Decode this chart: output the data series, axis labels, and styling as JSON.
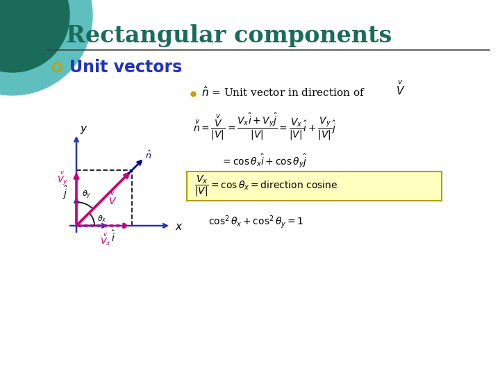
{
  "title": "Rectangular components",
  "title_color": "#1a6b5a",
  "title_fontsize": 24,
  "bg_color": "#ffffff",
  "circle_color_outer": "#5fbfbf",
  "circle_color_inner": "#1a6b5a",
  "bullet_color": "#c8a000",
  "bullet_text": "Unit vectors",
  "bullet_text_color": "#2233bb",
  "bullet_fontsize": 17,
  "axis_color": "#2233bb",
  "vector_color": "#cc0077",
  "nhat_color": "#000099",
  "dashed_color": "#111111",
  "angle_color": "#111111",
  "box_color": "#ffffc0",
  "box_edge_color": "#b0a000",
  "ox": 110,
  "oy": 215,
  "sc": 80
}
